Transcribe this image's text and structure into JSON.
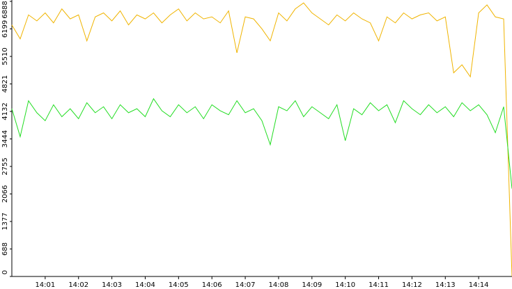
{
  "chart_data": {
    "type": "line",
    "x": [
      0,
      0.25,
      0.5,
      0.75,
      1,
      1.25,
      1.5,
      1.75,
      2,
      2.25,
      2.5,
      2.75,
      3,
      3.25,
      3.5,
      3.75,
      4,
      4.25,
      4.5,
      4.75,
      5,
      5.25,
      5.5,
      5.75,
      6,
      6.25,
      6.5,
      6.75,
      7,
      7.25,
      7.5,
      7.75,
      8,
      8.25,
      8.5,
      8.75,
      9,
      9.25,
      9.5,
      9.75,
      10,
      10.25,
      10.5,
      10.75,
      11,
      11.25,
      11.5,
      11.75,
      12,
      12.25,
      12.5,
      12.75,
      13,
      13.25,
      13.5,
      13.75,
      14,
      14.25,
      14.5,
      14.75,
      15
    ],
    "series": [
      {
        "color": "#f0b400",
        "values": [
          6300,
          5950,
          6550,
          6400,
          6600,
          6350,
          6700,
          6450,
          6550,
          5900,
          6500,
          6600,
          6400,
          6650,
          6300,
          6550,
          6450,
          6600,
          6350,
          6550,
          6700,
          6400,
          6600,
          6450,
          6500,
          6350,
          6650,
          5600,
          6500,
          6450,
          6200,
          5900,
          6600,
          6400,
          6700,
          6850,
          6600,
          6450,
          6300,
          6550,
          6400,
          6600,
          6450,
          6350,
          5900,
          6500,
          6350,
          6600,
          6450,
          6550,
          6600,
          6400,
          6500,
          5100,
          5300,
          5000,
          6600,
          6800,
          6500,
          6450,
          0
        ]
      },
      {
        "color": "#22dd22",
        "values": [
          4200,
          3500,
          4400,
          4100,
          3900,
          4300,
          4000,
          4200,
          3950,
          4350,
          4100,
          4250,
          3950,
          4300,
          4100,
          4200,
          4000,
          4450,
          4150,
          4000,
          4300,
          4100,
          4250,
          3950,
          4300,
          4150,
          4050,
          4400,
          4100,
          4200,
          3900,
          3300,
          4250,
          4150,
          4400,
          4000,
          4250,
          4100,
          3950,
          4300,
          3400,
          4200,
          4050,
          4350,
          4150,
          4300,
          3850,
          4400,
          4200,
          4050,
          4300,
          4100,
          4250,
          4000,
          4350,
          4150,
          4300,
          4050,
          3600,
          4250,
          2200
        ]
      }
    ],
    "xlim": [
      0,
      15
    ],
    "xticks": [
      {
        "value": 1,
        "label": "14:01"
      },
      {
        "value": 2,
        "label": "14:02"
      },
      {
        "value": 3,
        "label": "14:03"
      },
      {
        "value": 4,
        "label": "14:04"
      },
      {
        "value": 5,
        "label": "14:05"
      },
      {
        "value": 6,
        "label": "14:06"
      },
      {
        "value": 7,
        "label": "14:07"
      },
      {
        "value": 8,
        "label": "14:08"
      },
      {
        "value": 9,
        "label": "14:09"
      },
      {
        "value": 10,
        "label": "14:10"
      },
      {
        "value": 11,
        "label": "14:11"
      },
      {
        "value": 12,
        "label": "14:12"
      },
      {
        "value": 13,
        "label": "14:13"
      },
      {
        "value": 14,
        "label": "14:14"
      }
    ],
    "ylim": [
      0,
      6888
    ],
    "yticks": [
      0,
      688,
      1377,
      2066,
      2755,
      3444,
      4132,
      4821,
      5510,
      6199,
      6888
    ]
  }
}
